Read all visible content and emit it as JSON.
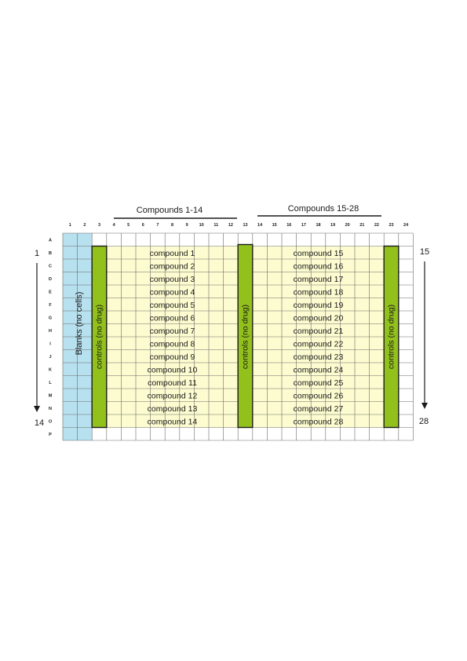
{
  "plate": {
    "col_labels": [
      "1",
      "2",
      "3",
      "4",
      "5",
      "6",
      "7",
      "8",
      "9",
      "10",
      "11",
      "12",
      "13",
      "14",
      "15",
      "16",
      "17",
      "18",
      "19",
      "20",
      "21",
      "22",
      "23",
      "24"
    ],
    "row_labels": [
      "A",
      "B",
      "C",
      "D",
      "E",
      "F",
      "G",
      "H",
      "I",
      "J",
      "K",
      "L",
      "M",
      "N",
      "O",
      "P"
    ],
    "groups": [
      {
        "label": "Compounds 1-14"
      },
      {
        "label": "Compounds 15-28"
      }
    ],
    "blanks_label": "Blanks (no cells)",
    "control_label": "controls (no drug)",
    "compounds_left": [
      "compound 1",
      "compound 2",
      "compound 3",
      "compound 4",
      "compound 5",
      "compound 6",
      "compound 7",
      "compound 8",
      "compound 9",
      "compound 10",
      "compound 11",
      "compound 12",
      "compound 13",
      "compound 14"
    ],
    "compounds_right": [
      "compound 15",
      "compound 16",
      "compound 17",
      "compound 18",
      "compound 19",
      "compound 20",
      "compound 21",
      "compound 22",
      "compound 23",
      "compound 24",
      "compound 25",
      "compound 26",
      "compound 27",
      "compound 28"
    ],
    "left_range": {
      "start": "1",
      "end": "14"
    },
    "right_range": {
      "start": "15",
      "end": "28"
    }
  },
  "colors": {
    "blank_fill": "#b8e1ef",
    "compound_fill": "#fdfcd0",
    "control_fill": "#93c11c",
    "grid": "#6b6b6b",
    "text": "#1a1a1a"
  }
}
